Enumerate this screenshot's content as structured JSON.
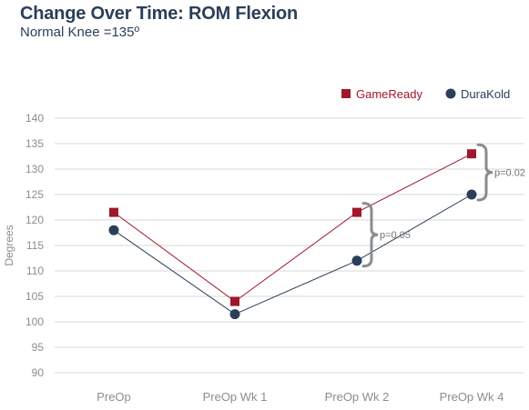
{
  "chart_data": {
    "type": "line",
    "title": "Change Over Time: ROM Flexion",
    "subtitle": "Normal Knee =135º",
    "ylabel": "Degrees",
    "xlabel": "",
    "ylim": [
      90,
      140
    ],
    "yticks": [
      90,
      95,
      100,
      105,
      110,
      115,
      120,
      125,
      130,
      135,
      140
    ],
    "categories": [
      "PreOp",
      "PreOp Wk 1",
      "PreOp Wk 2",
      "PreOp Wk 4"
    ],
    "grid": true,
    "legend_position": "top-right",
    "series": [
      {
        "name": "GameReady",
        "values": [
          121.5,
          104,
          121.5,
          133
        ],
        "color": "#a0162a",
        "marker": "square"
      },
      {
        "name": "DuraKold",
        "values": [
          118,
          101.5,
          112,
          125
        ],
        "color": "#2b3f5a",
        "marker": "circle"
      }
    ],
    "annotations": [
      {
        "text": "p=0.05",
        "category_index": 2,
        "from": 112,
        "to": 121.5
      },
      {
        "text": "p=0.02",
        "category_index": 3,
        "from": 125,
        "to": 133
      }
    ]
  }
}
